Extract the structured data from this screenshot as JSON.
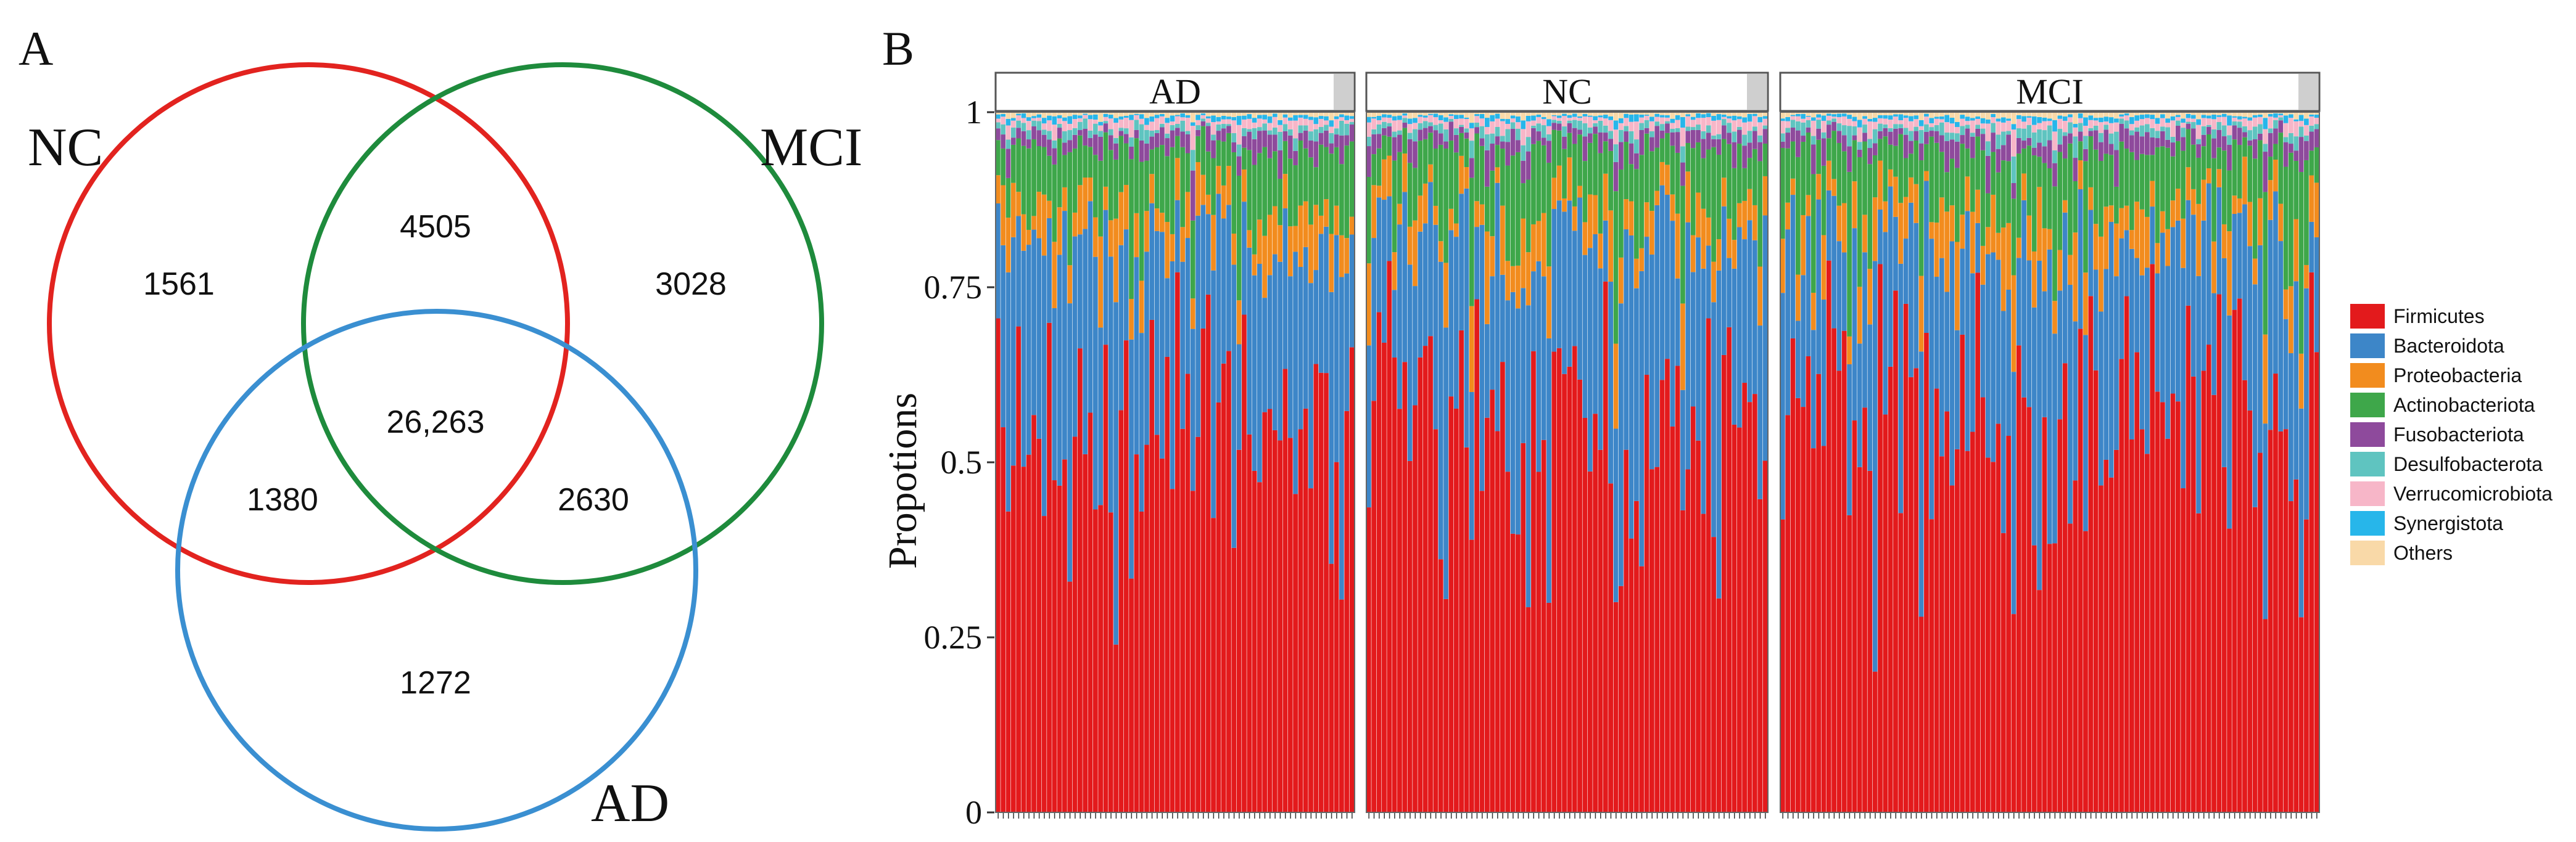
{
  "panels": {
    "a": "A",
    "b": "B"
  },
  "colors": {
    "NC": "#e2231f",
    "MCI": "#1e8b3c",
    "AD": "#3a8fd1",
    "Firmicutes": "#e31a1c",
    "Bacteroidota": "#3d86c8",
    "Proteobacteria": "#f28c1e",
    "Actinobacteriota": "#3ea74a",
    "Fusobacteriota": "#8e4a9c",
    "Desulfobacterota": "#5fc4c0",
    "Verrucomicrobiota": "#f7b6c8",
    "Synergistota": "#27b6ea",
    "Others": "#f9d9a8"
  },
  "chart_data": [
    {
      "type": "venn",
      "sets": [
        "NC",
        "MCI",
        "AD"
      ],
      "regions": {
        "NC_only": "1561",
        "NC_MCI": "4505",
        "MCI_only": "3028",
        "all": "26,263",
        "NC_AD": "1380",
        "MCI_AD": "2630",
        "AD_only": "1272"
      }
    },
    {
      "type": "stacked_bar",
      "ylabel": "Propotions",
      "ylim": [
        0,
        1
      ],
      "yticks": [
        0,
        0.25,
        0.5,
        0.75,
        1
      ],
      "ytick_labels": [
        "0",
        "0.25",
        "0.5",
        "0.75",
        "1"
      ],
      "facets": [
        {
          "name": "AD",
          "n_samples": 70
        },
        {
          "name": "NC",
          "n_samples": 78
        },
        {
          "name": "MCI",
          "n_samples": 105
        }
      ],
      "legend": [
        "Firmicutes",
        "Bacteroidota",
        "Proteobacteria",
        "Actinobacteriota",
        "Fusobacteriota",
        "Desulfobacterota",
        "Verrucomicrobiota",
        "Synergistota",
        "Others"
      ],
      "typical_composition": {
        "Firmicutes": 0.6,
        "Bacteroidota": 0.22,
        "Proteobacteria": 0.05,
        "Actinobacteriota": 0.08,
        "Fusobacteriota": 0.02,
        "Desulfobacterota": 0.01,
        "Verrucomicrobiota": 0.01,
        "Synergistota": 0.005,
        "Others": 0.005
      }
    }
  ]
}
